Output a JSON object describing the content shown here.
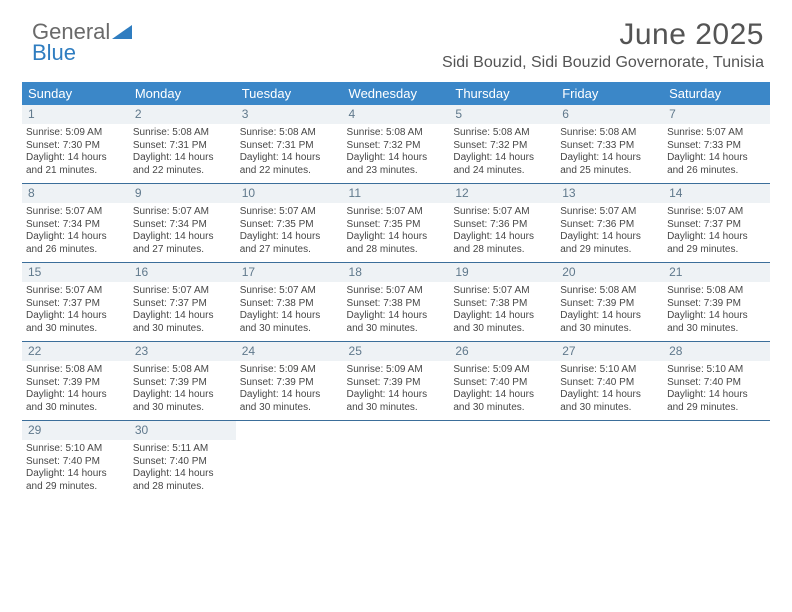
{
  "brand": {
    "part1": "General",
    "part2": "Blue"
  },
  "header": {
    "title": "June 2025",
    "subtitle": "Sidi Bouzid, Sidi Bouzid Governorate, Tunisia"
  },
  "colors": {
    "header_bg": "#3b87c8",
    "header_text": "#ffffff",
    "daynum_bg": "#eef2f5",
    "daynum_text": "#60798c",
    "rule": "#3b6e9a",
    "body_text": "#474747",
    "brand_gray": "#6a6a6a",
    "brand_blue": "#2f7dc0"
  },
  "dayNames": [
    "Sunday",
    "Monday",
    "Tuesday",
    "Wednesday",
    "Thursday",
    "Friday",
    "Saturday"
  ],
  "weeks": [
    [
      {
        "n": "1",
        "sr": "Sunrise: 5:09 AM",
        "ss": "Sunset: 7:30 PM",
        "d1": "Daylight: 14 hours",
        "d2": "and 21 minutes."
      },
      {
        "n": "2",
        "sr": "Sunrise: 5:08 AM",
        "ss": "Sunset: 7:31 PM",
        "d1": "Daylight: 14 hours",
        "d2": "and 22 minutes."
      },
      {
        "n": "3",
        "sr": "Sunrise: 5:08 AM",
        "ss": "Sunset: 7:31 PM",
        "d1": "Daylight: 14 hours",
        "d2": "and 22 minutes."
      },
      {
        "n": "4",
        "sr": "Sunrise: 5:08 AM",
        "ss": "Sunset: 7:32 PM",
        "d1": "Daylight: 14 hours",
        "d2": "and 23 minutes."
      },
      {
        "n": "5",
        "sr": "Sunrise: 5:08 AM",
        "ss": "Sunset: 7:32 PM",
        "d1": "Daylight: 14 hours",
        "d2": "and 24 minutes."
      },
      {
        "n": "6",
        "sr": "Sunrise: 5:08 AM",
        "ss": "Sunset: 7:33 PM",
        "d1": "Daylight: 14 hours",
        "d2": "and 25 minutes."
      },
      {
        "n": "7",
        "sr": "Sunrise: 5:07 AM",
        "ss": "Sunset: 7:33 PM",
        "d1": "Daylight: 14 hours",
        "d2": "and 26 minutes."
      }
    ],
    [
      {
        "n": "8",
        "sr": "Sunrise: 5:07 AM",
        "ss": "Sunset: 7:34 PM",
        "d1": "Daylight: 14 hours",
        "d2": "and 26 minutes."
      },
      {
        "n": "9",
        "sr": "Sunrise: 5:07 AM",
        "ss": "Sunset: 7:34 PM",
        "d1": "Daylight: 14 hours",
        "d2": "and 27 minutes."
      },
      {
        "n": "10",
        "sr": "Sunrise: 5:07 AM",
        "ss": "Sunset: 7:35 PM",
        "d1": "Daylight: 14 hours",
        "d2": "and 27 minutes."
      },
      {
        "n": "11",
        "sr": "Sunrise: 5:07 AM",
        "ss": "Sunset: 7:35 PM",
        "d1": "Daylight: 14 hours",
        "d2": "and 28 minutes."
      },
      {
        "n": "12",
        "sr": "Sunrise: 5:07 AM",
        "ss": "Sunset: 7:36 PM",
        "d1": "Daylight: 14 hours",
        "d2": "and 28 minutes."
      },
      {
        "n": "13",
        "sr": "Sunrise: 5:07 AM",
        "ss": "Sunset: 7:36 PM",
        "d1": "Daylight: 14 hours",
        "d2": "and 29 minutes."
      },
      {
        "n": "14",
        "sr": "Sunrise: 5:07 AM",
        "ss": "Sunset: 7:37 PM",
        "d1": "Daylight: 14 hours",
        "d2": "and 29 minutes."
      }
    ],
    [
      {
        "n": "15",
        "sr": "Sunrise: 5:07 AM",
        "ss": "Sunset: 7:37 PM",
        "d1": "Daylight: 14 hours",
        "d2": "and 30 minutes."
      },
      {
        "n": "16",
        "sr": "Sunrise: 5:07 AM",
        "ss": "Sunset: 7:37 PM",
        "d1": "Daylight: 14 hours",
        "d2": "and 30 minutes."
      },
      {
        "n": "17",
        "sr": "Sunrise: 5:07 AM",
        "ss": "Sunset: 7:38 PM",
        "d1": "Daylight: 14 hours",
        "d2": "and 30 minutes."
      },
      {
        "n": "18",
        "sr": "Sunrise: 5:07 AM",
        "ss": "Sunset: 7:38 PM",
        "d1": "Daylight: 14 hours",
        "d2": "and 30 minutes."
      },
      {
        "n": "19",
        "sr": "Sunrise: 5:07 AM",
        "ss": "Sunset: 7:38 PM",
        "d1": "Daylight: 14 hours",
        "d2": "and 30 minutes."
      },
      {
        "n": "20",
        "sr": "Sunrise: 5:08 AM",
        "ss": "Sunset: 7:39 PM",
        "d1": "Daylight: 14 hours",
        "d2": "and 30 minutes."
      },
      {
        "n": "21",
        "sr": "Sunrise: 5:08 AM",
        "ss": "Sunset: 7:39 PM",
        "d1": "Daylight: 14 hours",
        "d2": "and 30 minutes."
      }
    ],
    [
      {
        "n": "22",
        "sr": "Sunrise: 5:08 AM",
        "ss": "Sunset: 7:39 PM",
        "d1": "Daylight: 14 hours",
        "d2": "and 30 minutes."
      },
      {
        "n": "23",
        "sr": "Sunrise: 5:08 AM",
        "ss": "Sunset: 7:39 PM",
        "d1": "Daylight: 14 hours",
        "d2": "and 30 minutes."
      },
      {
        "n": "24",
        "sr": "Sunrise: 5:09 AM",
        "ss": "Sunset: 7:39 PM",
        "d1": "Daylight: 14 hours",
        "d2": "and 30 minutes."
      },
      {
        "n": "25",
        "sr": "Sunrise: 5:09 AM",
        "ss": "Sunset: 7:39 PM",
        "d1": "Daylight: 14 hours",
        "d2": "and 30 minutes."
      },
      {
        "n": "26",
        "sr": "Sunrise: 5:09 AM",
        "ss": "Sunset: 7:40 PM",
        "d1": "Daylight: 14 hours",
        "d2": "and 30 minutes."
      },
      {
        "n": "27",
        "sr": "Sunrise: 5:10 AM",
        "ss": "Sunset: 7:40 PM",
        "d1": "Daylight: 14 hours",
        "d2": "and 30 minutes."
      },
      {
        "n": "28",
        "sr": "Sunrise: 5:10 AM",
        "ss": "Sunset: 7:40 PM",
        "d1": "Daylight: 14 hours",
        "d2": "and 29 minutes."
      }
    ],
    [
      {
        "n": "29",
        "sr": "Sunrise: 5:10 AM",
        "ss": "Sunset: 7:40 PM",
        "d1": "Daylight: 14 hours",
        "d2": "and 29 minutes."
      },
      {
        "n": "30",
        "sr": "Sunrise: 5:11 AM",
        "ss": "Sunset: 7:40 PM",
        "d1": "Daylight: 14 hours",
        "d2": "and 28 minutes."
      },
      null,
      null,
      null,
      null,
      null
    ]
  ]
}
